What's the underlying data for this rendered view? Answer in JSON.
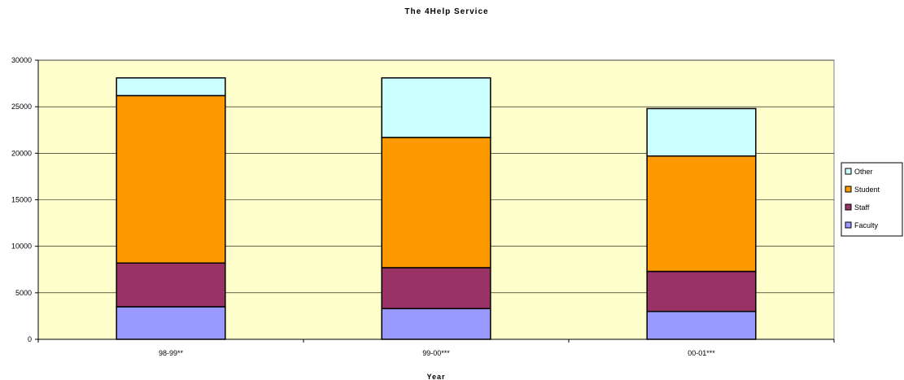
{
  "chart_data": {
    "type": "bar",
    "stacked": true,
    "title": "The 4Help Service",
    "xlabel": "Year",
    "ylabel": "",
    "categories": [
      "98-99**",
      "99-00***",
      "00-01***"
    ],
    "series": [
      {
        "name": "Faculty",
        "color": "#9999ff",
        "values": [
          3500,
          3300,
          3000
        ]
      },
      {
        "name": "Staff",
        "color": "#993366",
        "values": [
          4700,
          4400,
          4300
        ]
      },
      {
        "name": "Student",
        "color": "#ff9900",
        "values": [
          18000,
          14000,
          12400
        ]
      },
      {
        "name": "Other",
        "color": "#ccffff",
        "values": [
          1900,
          6400,
          5100
        ]
      }
    ],
    "ylim": [
      0,
      30000
    ],
    "yticks": [
      0,
      5000,
      10000,
      15000,
      20000,
      25000,
      30000
    ],
    "grid": true,
    "legend": "right",
    "legend_order": [
      "Other",
      "Student",
      "Staff",
      "Faculty"
    ],
    "plot_background": "#ffffcc"
  }
}
